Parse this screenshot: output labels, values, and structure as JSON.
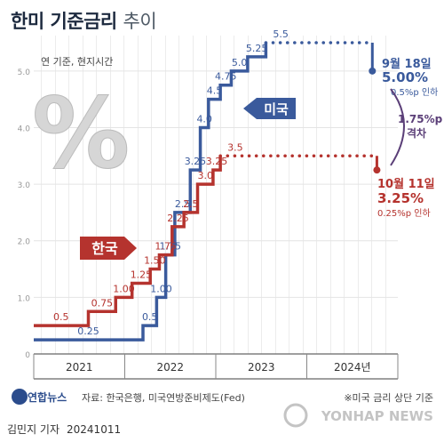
{
  "header": {
    "title_bold": "한미 기준금리",
    "title_light": "추이"
  },
  "footer": {
    "source": "자료: 한국은행, 미국연방준비제도(Fed)",
    "note": "※미국 금리 상단 기준",
    "logo": "연합뉴스",
    "watermark": "YONHAP NEWS",
    "author": "김민지 기자",
    "date": "20241011"
  },
  "colors": {
    "us": "#3a5a9c",
    "kr": "#b5332e",
    "axis": "#555555",
    "grid": "#cccccc"
  },
  "chart_data": {
    "type": "line",
    "title": "한미 기준금리 추이",
    "unit_note": "연 기준, 현지시간",
    "percent_mark": "%",
    "ylim": [
      0,
      5.5
    ],
    "y_ticks": [
      0,
      1.0,
      2.0,
      3.0,
      4.0,
      5.0
    ],
    "y_tick_labels": [
      "0",
      "1.0",
      "2.0",
      "3.0",
      "4.0",
      "5.0"
    ],
    "x_labels": [
      "2021",
      "2022",
      "2023",
      "2024년"
    ],
    "x_boundaries": [
      2021,
      2022,
      2023,
      2024,
      2025
    ],
    "grid": true,
    "series": [
      {
        "name": "미국",
        "color": "#3a5a9c",
        "steps": [
          {
            "x": 2022.2,
            "y": 0.5,
            "label": "0.25"
          },
          {
            "x": 2022.35,
            "y": 1.0,
            "label": "0.5"
          },
          {
            "x": 2022.45,
            "y": 1.75,
            "label": "1.00"
          },
          {
            "x": 2022.55,
            "y": 2.5,
            "label": "1.75"
          },
          {
            "x": 2022.72,
            "y": 3.25,
            "label": "2.5"
          },
          {
            "x": 2022.83,
            "y": 4.0,
            "label": "3.25"
          },
          {
            "x": 2022.92,
            "y": 4.5,
            "label": "4.0"
          },
          {
            "x": 2023.05,
            "y": 4.75,
            "label": "4.5"
          },
          {
            "x": 2023.17,
            "y": 5.0,
            "label": "4.75"
          },
          {
            "x": 2023.35,
            "y": 5.25,
            "label": "5.0"
          },
          {
            "x": 2023.55,
            "y": 5.5,
            "label": "5.25"
          },
          {
            "x": 2024.72,
            "y": 5.0,
            "label": "5.5"
          }
        ],
        "start_value": 0.25
      },
      {
        "name": "한국",
        "color": "#b5332e",
        "steps": [
          {
            "x": 2021.6,
            "y": 0.75,
            "label": "0.5"
          },
          {
            "x": 2021.9,
            "y": 1.0,
            "label": "0.75"
          },
          {
            "x": 2022.08,
            "y": 1.25,
            "label": "1.00"
          },
          {
            "x": 2022.28,
            "y": 1.5,
            "label": "1.25"
          },
          {
            "x": 2022.38,
            "y": 1.75,
            "label": "1.50"
          },
          {
            "x": 2022.52,
            "y": 2.25,
            "label": "1.75"
          },
          {
            "x": 2022.65,
            "y": 2.5,
            "label": "2.25"
          },
          {
            "x": 2022.8,
            "y": 3.0,
            "label": "2.5"
          },
          {
            "x": 2022.97,
            "y": 3.25,
            "label": "3.0"
          },
          {
            "x": 2023.05,
            "y": 3.5,
            "label": "3.25"
          },
          {
            "x": 2024.77,
            "y": 3.25,
            "label": "3.5"
          }
        ],
        "start_value": 0.5
      }
    ],
    "annotations": {
      "us": {
        "date": "9월 18일",
        "value": "5.00%",
        "change": "0.5%p 인하"
      },
      "kr": {
        "date": "10월 11일",
        "value": "3.25%",
        "change": "0.25%p 인하"
      },
      "gap": {
        "value": "1.75%p",
        "label": "격차"
      }
    }
  }
}
